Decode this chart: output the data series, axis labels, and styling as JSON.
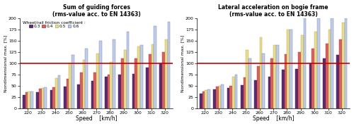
{
  "title1": "Sum of guiding forces\n(rms-value acc. to EN 14363)",
  "title2": "Lateral acceleration on bogie frame\n(rms-value acc. to EN 14363)",
  "xlabel": "Speed    [km/h]",
  "ylabel": "Nondimensional max. [%]",
  "speeds": [
    220,
    230,
    240,
    250,
    260,
    270,
    280,
    290,
    300,
    310,
    320
  ],
  "legend_title": "Wheel/rail friction coefficient :",
  "legend_labels": [
    "0.3",
    "0.4",
    "0.5",
    "0.6"
  ],
  "bar_colors": [
    "#5c2a6e",
    "#d96060",
    "#e8dc90",
    "#c0cce8"
  ],
  "bar_edge_colors": [
    "#3a1a50",
    "#aa3030",
    "#b0a840",
    "#7080a8"
  ],
  "ylim": [
    0,
    200
  ],
  "yticks": [
    0,
    25,
    50,
    75,
    100,
    125,
    150,
    175,
    200
  ],
  "hline_y": 100,
  "hline_color": "#cc0000",
  "chart1_data": {
    "0.3": [
      30,
      36,
      40,
      48,
      53,
      60,
      70,
      75,
      77,
      90,
      100
    ],
    "0.4": [
      35,
      43,
      47,
      65,
      80,
      80,
      75,
      110,
      110,
      120,
      125
    ],
    "0.5": [
      37,
      45,
      67,
      100,
      108,
      122,
      103,
      130,
      137,
      142,
      153
    ],
    "0.6": [
      38,
      47,
      73,
      118,
      133,
      150,
      153,
      170,
      140,
      183,
      192
    ]
  },
  "chart2_data": {
    "0.3": [
      32,
      42,
      45,
      52,
      62,
      70,
      85,
      88,
      100,
      110,
      118
    ],
    "0.4": [
      38,
      48,
      50,
      68,
      93,
      110,
      120,
      125,
      133,
      143,
      153
    ],
    "0.5": [
      40,
      50,
      70,
      130,
      158,
      140,
      175,
      162,
      170,
      175,
      190
    ],
    "0.6": [
      42,
      53,
      75,
      110,
      122,
      140,
      175,
      200,
      200,
      200,
      200
    ]
  },
  "fig_width": 5.0,
  "fig_height": 1.79,
  "dpi": 100
}
